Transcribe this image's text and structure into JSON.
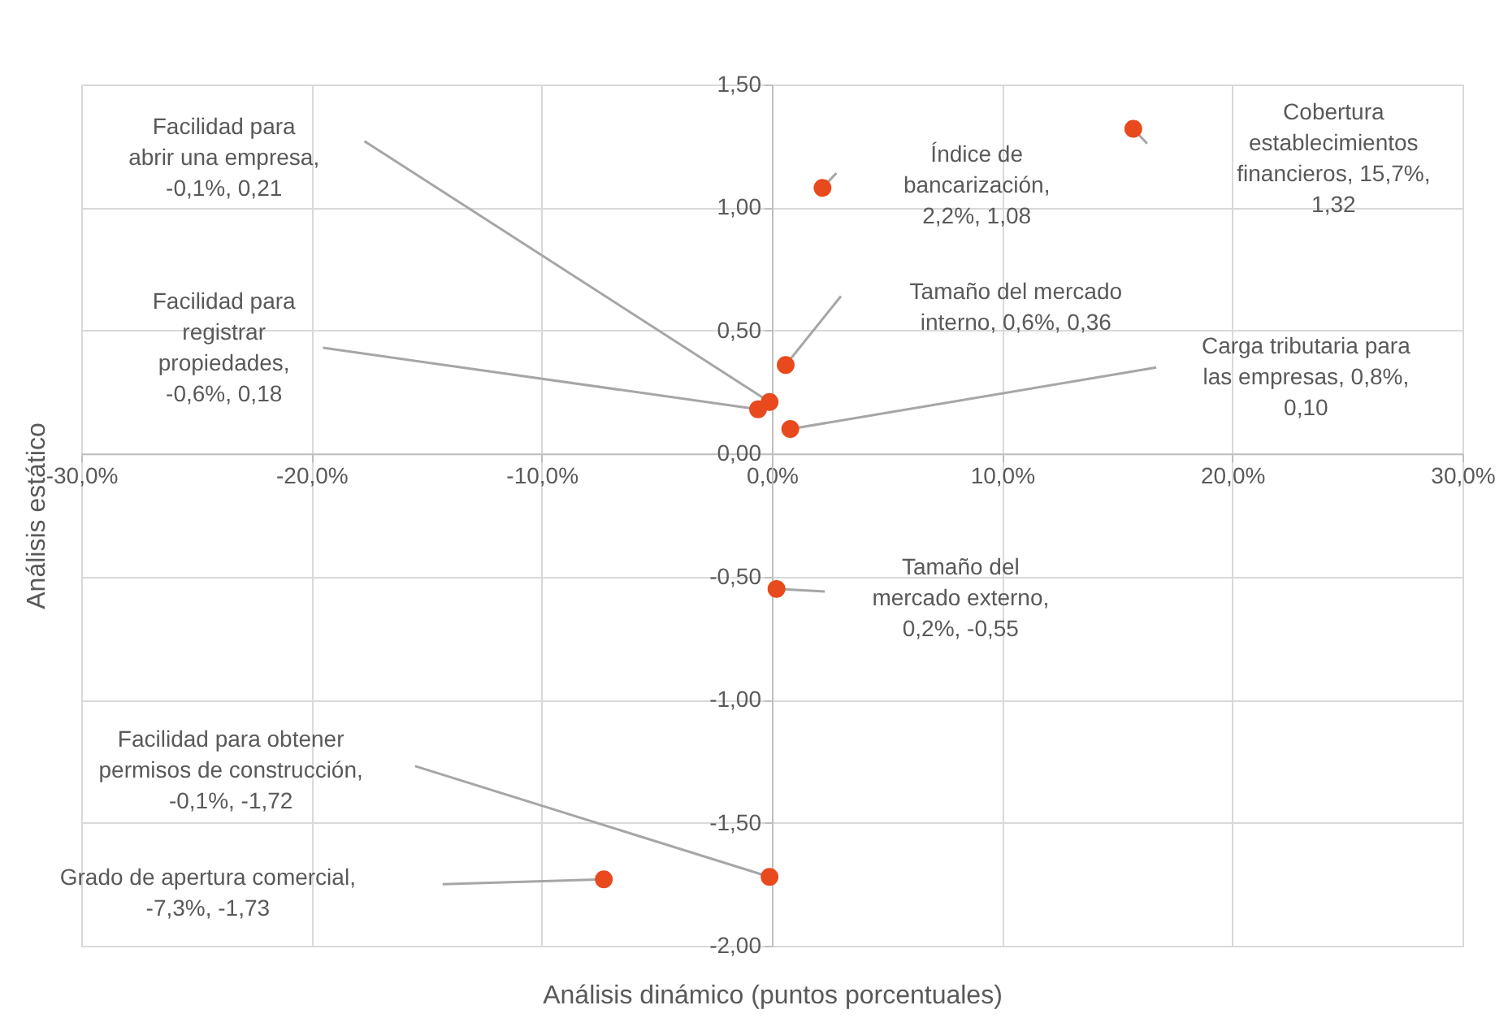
{
  "chart_data": {
    "type": "scatter",
    "xlabel": "Análisis dinámico (puntos porcentuales)",
    "ylabel": "Análisis estático",
    "series": [
      {
        "color": "#e8491d",
        "x": [
          -0.1,
          2.2,
          15.7,
          0.6,
          -0.6,
          0.8,
          0.2,
          -0.1,
          -7.3
        ],
        "values": [
          0.21,
          1.08,
          1.32,
          0.36,
          0.18,
          0.1,
          -0.55,
          -1.72,
          -1.73
        ]
      }
    ],
    "annotations": [
      "Facilidad para abrir una empresa, -0,1%, 0,21",
      "Índice de bancarización, 2,2%, 1,08",
      "Cobertura establecimientos financieros, 15,7%, 1,32",
      "Tamaño del mercado interno, 0,6%, 0,36",
      "Facilidad para registrar propiedades, -0,6%, 0,18",
      "Carga tributaria para las empresas, 0,8%, 0,10",
      "Tamaño del mercado externo, 0,2%, -0,55",
      "Facilidad para obtener permisos de construcción, -0,1%, -1,72",
      "Grado de apertura comercial, -7,3%, -1,73"
    ],
    "xlim": [
      -30,
      30
    ],
    "ylim": [
      -2,
      1.5
    ],
    "xticks": [
      {
        "value": -30,
        "label": "-30,0%"
      },
      {
        "value": -20,
        "label": "-20,0%"
      },
      {
        "value": -10,
        "label": "-10,0%"
      },
      {
        "value": 0,
        "label": "0,0%"
      },
      {
        "value": 10,
        "label": "10,0%"
      },
      {
        "value": 20,
        "label": "20,0%"
      },
      {
        "value": 30,
        "label": "30,0%"
      }
    ],
    "yticks": [
      {
        "value": -2,
        "label": "-2,00"
      },
      {
        "value": -1.5,
        "label": "-1,50"
      },
      {
        "value": -1,
        "label": "-1,00"
      },
      {
        "value": -0.5,
        "label": "-0,50"
      },
      {
        "value": 0,
        "label": "0,00"
      },
      {
        "value": 0.5,
        "label": "0,50"
      },
      {
        "value": 1,
        "label": "1,00"
      },
      {
        "value": 1.5,
        "label": "1,50"
      }
    ],
    "grid": true,
    "marker": "circle"
  }
}
